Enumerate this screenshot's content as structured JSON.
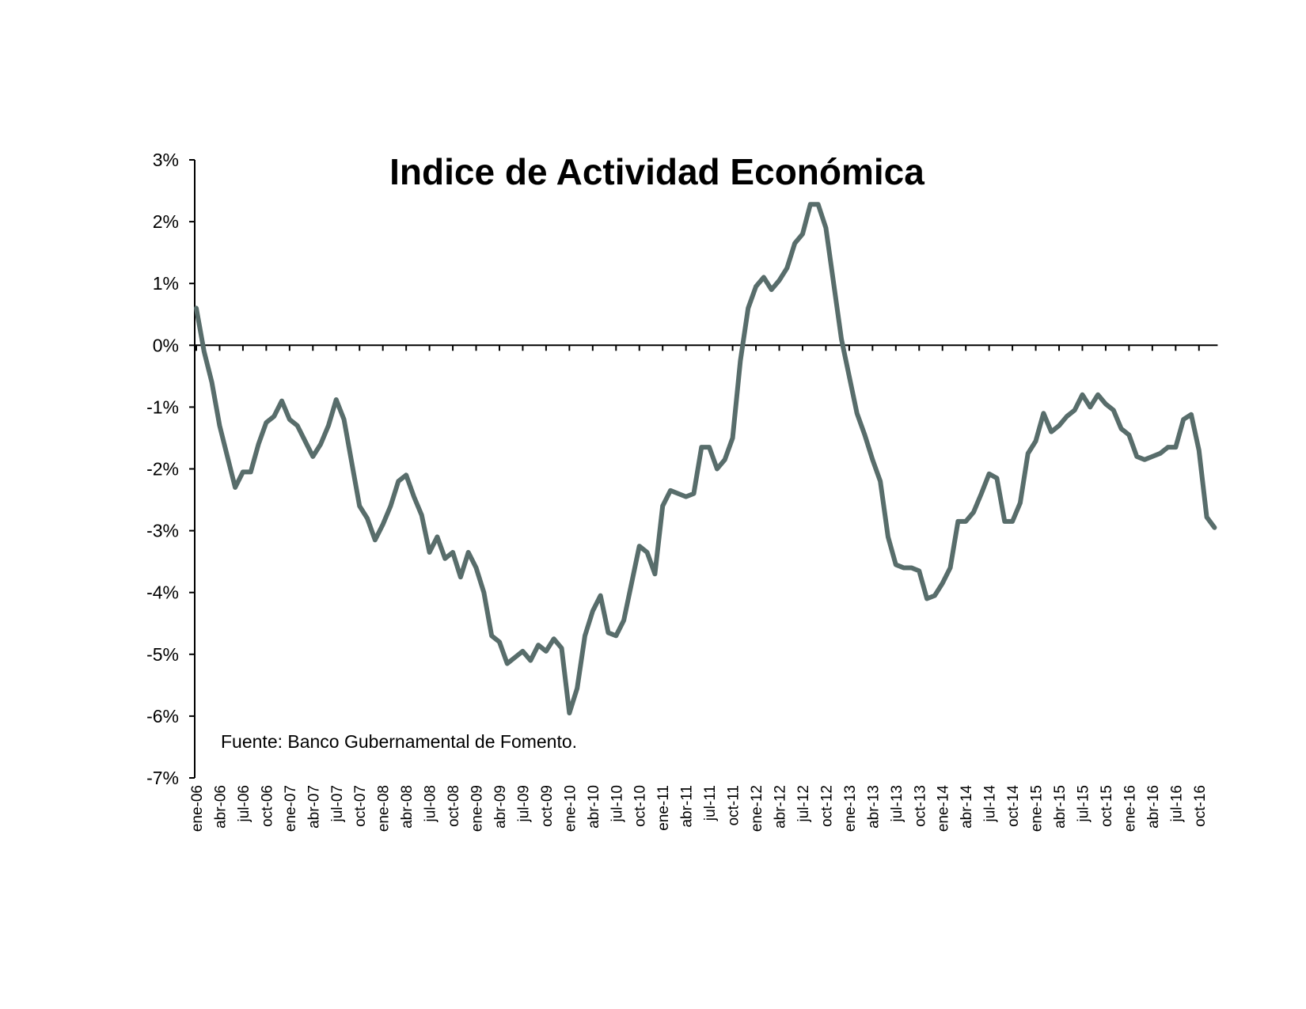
{
  "chart_data": {
    "type": "line",
    "title": "Indice de Actividad Económica",
    "note": "Fuente: Banco Gubernamental de Fomento.",
    "xlabel": "",
    "ylabel": "",
    "ylim": [
      -7,
      3
    ],
    "y_tick_values": [
      3,
      2,
      1,
      0,
      -1,
      -2,
      -3,
      -4,
      -5,
      -6,
      -7
    ],
    "y_tick_labels": [
      "3%",
      "2%",
      "1%",
      "0%",
      "-1%",
      "-2%",
      "-3%",
      "-4%",
      "-5%",
      "-6%",
      "-7%"
    ],
    "x_tick_labels": [
      "ene-06",
      "abr-06",
      "jul-06",
      "oct-06",
      "ene-07",
      "abr-07",
      "jul-07",
      "oct-07",
      "ene-08",
      "abr-08",
      "jul-08",
      "oct-08",
      "ene-09",
      "abr-09",
      "jul-09",
      "oct-09",
      "ene-10",
      "abr-10",
      "jul-10",
      "oct-10",
      "ene-11",
      "abr-11",
      "jul-11",
      "oct-11",
      "ene-12",
      "abr-12",
      "jul-12",
      "oct-12",
      "ene-13",
      "abr-13",
      "jul-13",
      "oct-13",
      "ene-14",
      "abr-14",
      "jul-14",
      "oct-14",
      "ene-15",
      "abr-15",
      "jul-15",
      "oct-15",
      "ene-16",
      "abr-16",
      "jul-16",
      "oct-16"
    ],
    "grid": false,
    "legend": "none",
    "line_color": "#586d6b",
    "series": [
      {
        "values": [
          0.6,
          -0.1,
          -0.6,
          -1.3,
          -1.8,
          -2.3,
          -2.05,
          -2.05,
          -1.6,
          -1.25,
          -1.15,
          -0.9,
          -1.2,
          -1.3,
          -1.55,
          -1.8,
          -1.6,
          -1.3,
          -0.88,
          -1.2,
          -1.9,
          -2.6,
          -2.8,
          -3.15,
          -2.9,
          -2.6,
          -2.2,
          -2.1,
          -2.45,
          -2.75,
          -3.35,
          -3.1,
          -3.45,
          -3.35,
          -3.75,
          -3.35,
          -3.6,
          -4.0,
          -4.7,
          -4.8,
          -5.15,
          -5.05,
          -4.95,
          -5.1,
          -4.85,
          -4.95,
          -4.75,
          -4.9,
          -5.95,
          -5.55,
          -4.7,
          -4.3,
          -4.05,
          -4.65,
          -4.7,
          -4.45,
          -3.85,
          -3.25,
          -3.35,
          -3.7,
          -2.6,
          -2.35,
          -2.4,
          -2.45,
          -2.4,
          -1.65,
          -1.65,
          -2.0,
          -1.85,
          -1.5,
          -0.25,
          0.6,
          0.95,
          1.1,
          0.9,
          1.05,
          1.25,
          1.65,
          1.8,
          2.28,
          2.28,
          1.9,
          1.0,
          0.1,
          -0.5,
          -1.1,
          -1.45,
          -1.85,
          -2.2,
          -3.1,
          -3.55,
          -3.6,
          -3.6,
          -3.65,
          -4.1,
          -4.05,
          -3.85,
          -3.6,
          -2.85,
          -2.85,
          -2.7,
          -2.4,
          -2.08,
          -2.15,
          -2.85,
          -2.85,
          -2.55,
          -1.75,
          -1.55,
          -1.1,
          -1.4,
          -1.3,
          -1.15,
          -1.05,
          -0.8,
          -1.0,
          -0.8,
          -0.95,
          -1.05,
          -1.35,
          -1.45,
          -1.8,
          -1.85,
          -1.8,
          -1.75,
          -1.65,
          -1.65,
          -1.2,
          -1.12,
          -1.7,
          -2.78,
          -2.95
        ]
      }
    ]
  }
}
